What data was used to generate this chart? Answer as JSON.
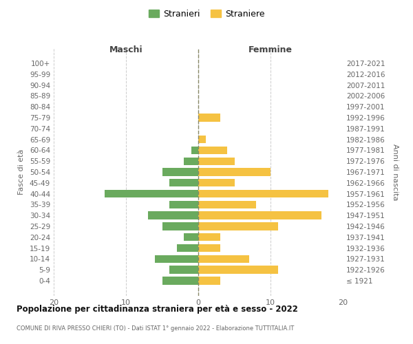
{
  "age_groups": [
    "100+",
    "95-99",
    "90-94",
    "85-89",
    "80-84",
    "75-79",
    "70-74",
    "65-69",
    "60-64",
    "55-59",
    "50-54",
    "45-49",
    "40-44",
    "35-39",
    "30-34",
    "25-29",
    "20-24",
    "15-19",
    "10-14",
    "5-9",
    "0-4"
  ],
  "birth_years": [
    "≤ 1921",
    "1922-1926",
    "1927-1931",
    "1932-1936",
    "1937-1941",
    "1942-1946",
    "1947-1951",
    "1952-1956",
    "1957-1961",
    "1962-1966",
    "1967-1971",
    "1972-1976",
    "1977-1981",
    "1982-1986",
    "1987-1991",
    "1992-1996",
    "1997-2001",
    "2002-2006",
    "2007-2011",
    "2012-2016",
    "2017-2021"
  ],
  "maschi": [
    0,
    0,
    0,
    0,
    0,
    0,
    0,
    0,
    1,
    2,
    5,
    4,
    13,
    4,
    7,
    5,
    2,
    3,
    6,
    4,
    5
  ],
  "femmine": [
    0,
    0,
    0,
    0,
    0,
    3,
    0,
    1,
    4,
    5,
    10,
    5,
    18,
    8,
    17,
    11,
    3,
    3,
    7,
    11,
    3
  ],
  "color_maschi": "#6aaa5e",
  "color_femmine": "#f5c242",
  "title": "Popolazione per cittadinanza straniera per età e sesso - 2022",
  "subtitle": "COMUNE DI RIVA PRESSO CHIERI (TO) - Dati ISTAT 1° gennaio 2022 - Elaborazione TUTTITALIA.IT",
  "xlabel_left": "Maschi",
  "xlabel_right": "Femmine",
  "ylabel_left": "Fasce di età",
  "ylabel_right": "Anni di nascita",
  "legend_maschi": "Stranieri",
  "legend_femmine": "Straniere",
  "xlim": 20,
  "background_color": "#ffffff",
  "grid_color": "#cccccc"
}
